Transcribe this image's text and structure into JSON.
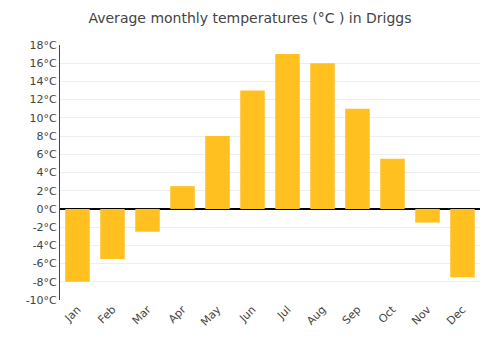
{
  "chart_data": {
    "type": "bar",
    "title": "Average monthly temperatures (°C ) in Driggs",
    "categories": [
      "Jan",
      "Feb",
      "Mar",
      "Apr",
      "May",
      "Jun",
      "Jul",
      "Aug",
      "Sep",
      "Oct",
      "Nov",
      "Dec"
    ],
    "values": [
      -8,
      -5.5,
      -2.5,
      2.5,
      8,
      13,
      17,
      16,
      11,
      5.5,
      -1.5,
      -7.5
    ],
    "color": "#FFC020",
    "ylim": [
      -10,
      18
    ],
    "yticks": [
      {
        "value": -10,
        "label": "-10°C"
      },
      {
        "value": -8,
        "label": "-8°C"
      },
      {
        "value": -6,
        "label": "-6°C"
      },
      {
        "value": -4,
        "label": "-4°C"
      },
      {
        "value": -2,
        "label": "-2°C"
      },
      {
        "value": 0,
        "label": "0°C"
      },
      {
        "value": 2,
        "label": "2°C"
      },
      {
        "value": 4,
        "label": "4°C"
      },
      {
        "value": 6,
        "label": "6°C"
      },
      {
        "value": 8,
        "label": "8°C"
      },
      {
        "value": 10,
        "label": "10°C"
      },
      {
        "value": 12,
        "label": "12°C"
      },
      {
        "value": 14,
        "label": "14°C"
      },
      {
        "value": 16,
        "label": "16°C"
      },
      {
        "value": 18,
        "label": "18°C"
      }
    ],
    "grid": true
  }
}
